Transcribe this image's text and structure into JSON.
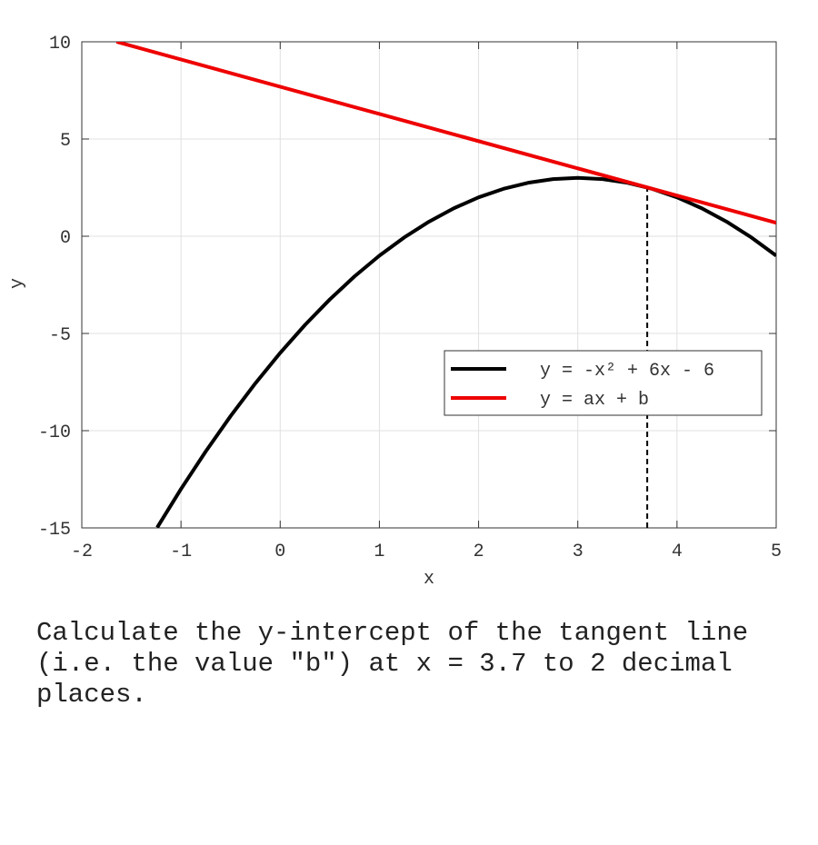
{
  "chart_data": {
    "type": "line",
    "xlabel": "x",
    "ylabel": "y",
    "xlim": [
      -2,
      5
    ],
    "ylim": [
      -15,
      10
    ],
    "xticks": [
      -2,
      -1,
      0,
      1,
      2,
      3,
      4,
      5
    ],
    "yticks": [
      -15,
      -10,
      -5,
      0,
      5,
      10
    ],
    "grid": true,
    "legend": "lower right",
    "series": [
      {
        "name": "y = -x² + 6x - 6",
        "color": "#000000",
        "x": [
          -1.24,
          -1,
          -0.75,
          -0.5,
          -0.25,
          0,
          0.25,
          0.5,
          0.75,
          1,
          1.25,
          1.5,
          1.75,
          2,
          2.25,
          2.5,
          2.75,
          3,
          3.25,
          3.5,
          3.75,
          4,
          4.25,
          4.5,
          4.75,
          5
        ],
        "values": [
          -14.98,
          -13,
          -11.0625,
          -9.25,
          -7.5625,
          -6,
          -4.5625,
          -3.25,
          -2.0625,
          -1,
          -0.0625,
          0.75,
          1.4375,
          2,
          2.4375,
          2.75,
          2.9375,
          3,
          2.9375,
          2.75,
          2.4375,
          2,
          1.4375,
          0.75,
          -0.0625,
          -1
        ]
      },
      {
        "name": "y = ax + b",
        "color": "#ee0000",
        "x": [
          -1.65,
          5
        ],
        "values": [
          10,
          0.69
        ]
      }
    ],
    "marker": {
      "x": 3.7,
      "y": 2.51,
      "style": "dashed",
      "color": "#000000"
    }
  },
  "question": "Calculate the y-intercept of the tangent line (i.e. the value \"b\") at x = 3.7 to 2 decimal places."
}
